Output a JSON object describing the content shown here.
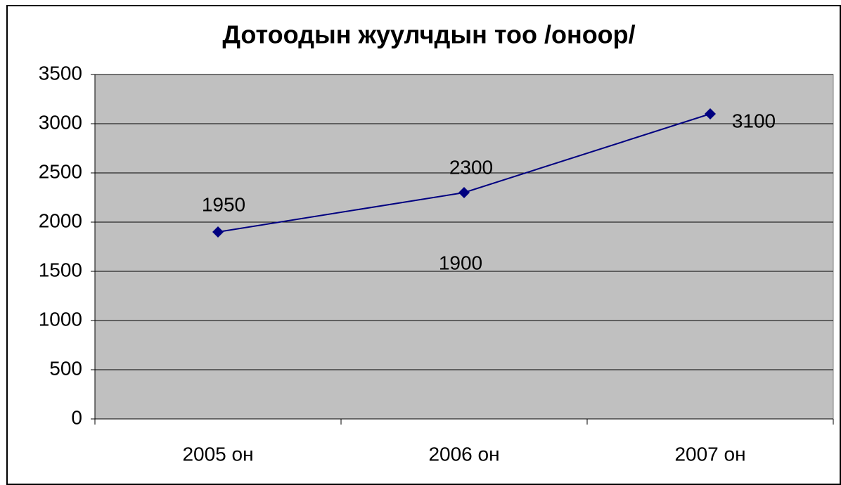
{
  "chart_data": {
    "type": "line",
    "title": "Дотоодын жуулчдын тоо  /оноор/",
    "categories": [
      "2005 он",
      "2006 он",
      "2007 он"
    ],
    "series": [
      {
        "name": "Дотоодын жуулчдын тоо",
        "color": "#000080",
        "values": [
          1900,
          2300,
          3100
        ]
      }
    ],
    "annotations": [
      "1950",
      "2300",
      "3100",
      "1900"
    ],
    "ylim": [
      0,
      3500
    ],
    "yticks": [
      0,
      500,
      1000,
      1500,
      2000,
      2500,
      3000,
      3500
    ],
    "grid": true,
    "plot_background": "#c0c0c0"
  }
}
